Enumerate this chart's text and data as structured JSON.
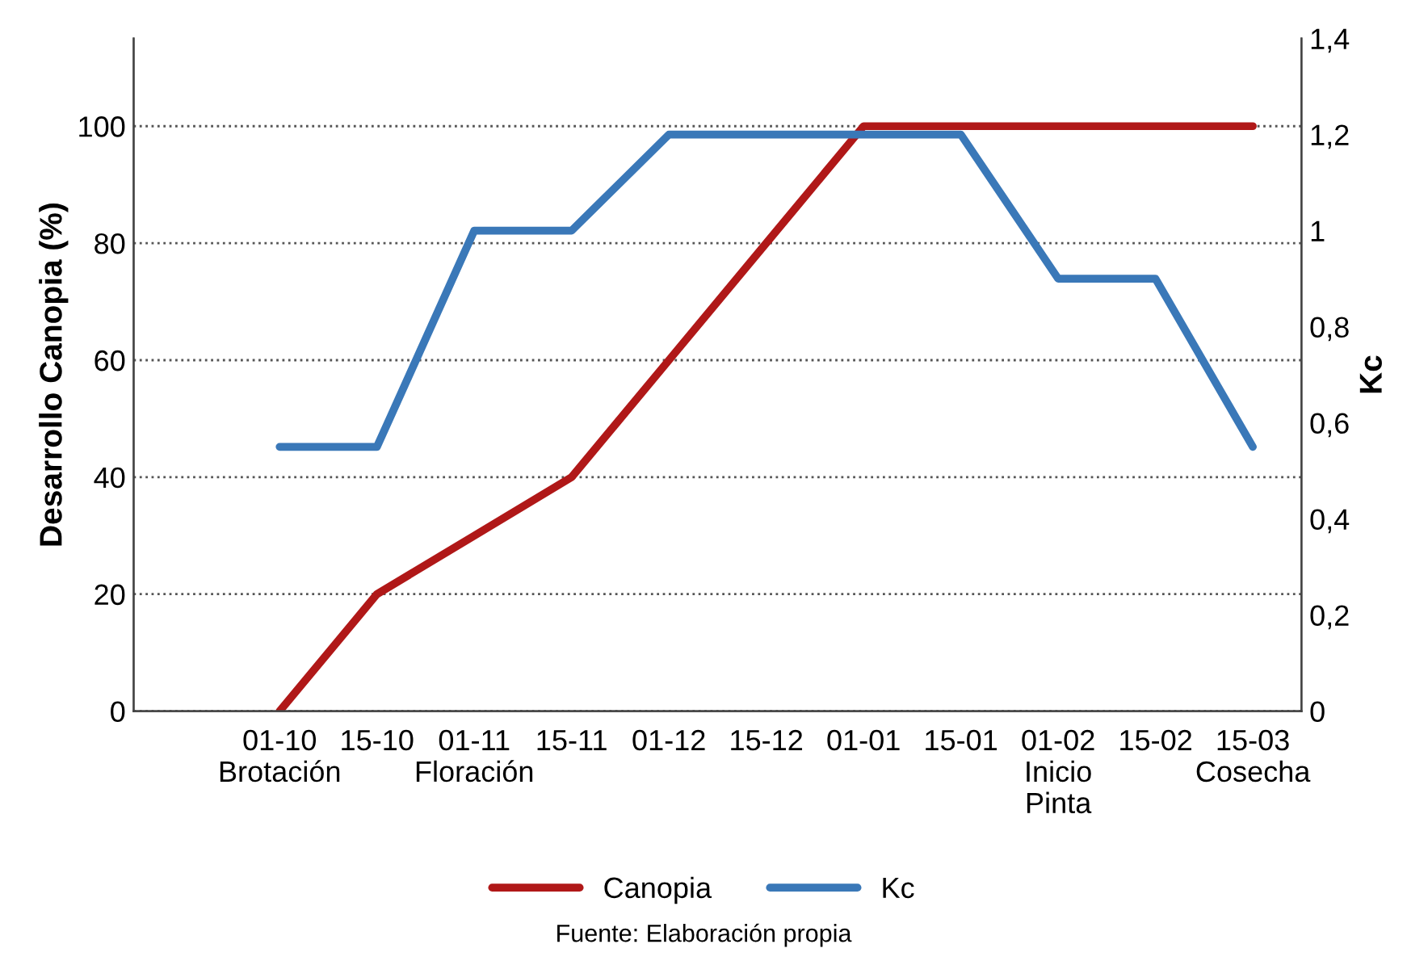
{
  "chart_data": {
    "type": "line",
    "categories": [
      null,
      "01-10\nBrotación",
      "15-10",
      "01-11\nFloración",
      "15-11",
      "01-12",
      "15-12",
      "01-01",
      "15-01",
      "01-02\nInicio\nPinta",
      "15-02",
      "15-03\nCosecha"
    ],
    "series": [
      {
        "name": "Canopia",
        "color": "#b01818",
        "values": [
          null,
          0,
          20,
          30,
          40,
          60,
          80,
          100,
          100,
          100,
          100,
          100
        ]
      },
      {
        "name": "Kc",
        "color": "#3a78b8",
        "axis": "y2",
        "values": [
          null,
          0.55,
          0.55,
          1.0,
          1.0,
          1.2,
          1.2,
          1.2,
          1.2,
          0.9,
          0.9,
          0.55
        ]
      }
    ],
    "ylabel": "Desarrollo Canopia (%)",
    "y2label": "Kc",
    "ylim": [
      0,
      115
    ],
    "yticks": [
      0,
      20,
      40,
      60,
      80,
      100
    ],
    "y2lim": [
      0,
      1.4
    ],
    "y2ticks": [
      0,
      {
        "value": 0.2,
        "label": "0,2"
      },
      {
        "value": 0.4,
        "label": "0,4"
      },
      {
        "value": 0.6,
        "label": "0,6"
      },
      {
        "value": 0.8,
        "label": "0,8"
      },
      1,
      {
        "value": 1.2,
        "label": "1,2"
      },
      {
        "value": 1.4,
        "label": "1,4"
      }
    ],
    "grid": "y",
    "legend": "bottom",
    "marker": "none",
    "line_style": "solid",
    "annotations": [
      "Fuente: Elaboración propia"
    ]
  }
}
